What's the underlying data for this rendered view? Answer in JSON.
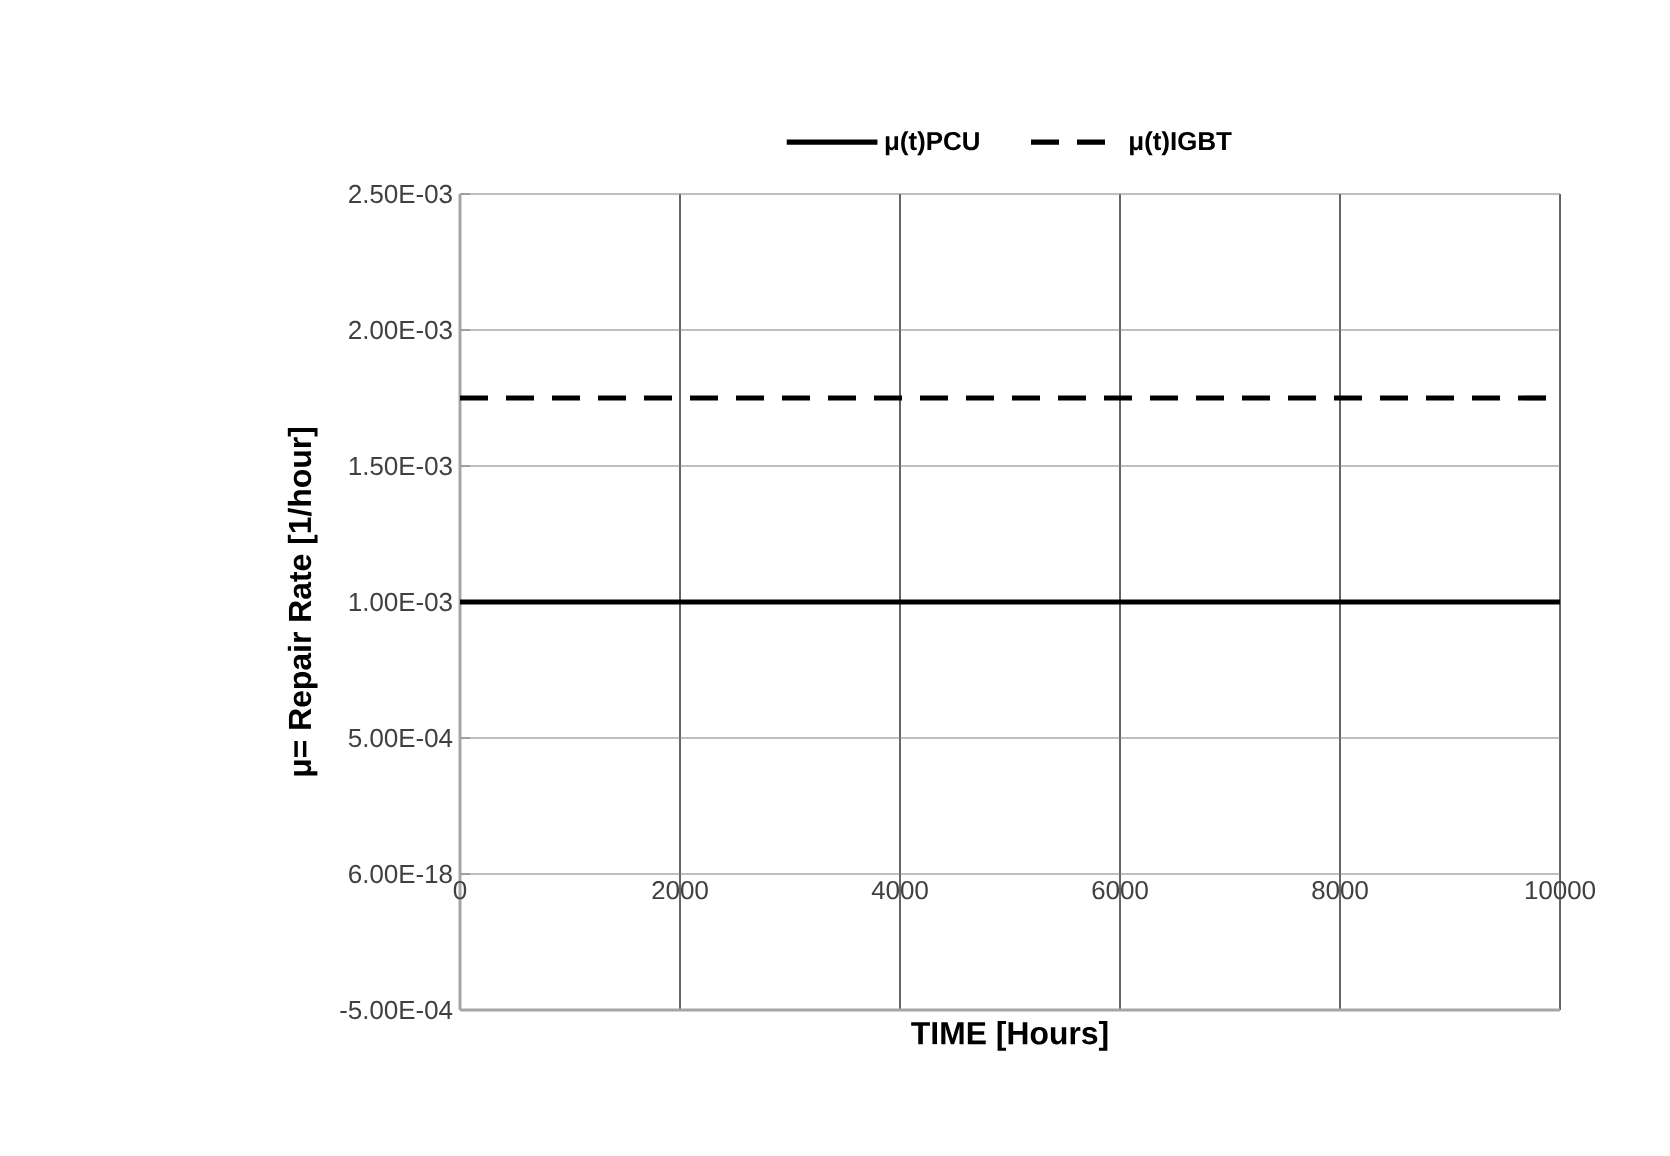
{
  "chart_data": {
    "type": "line",
    "xlabel": "TIME [Hours]",
    "ylabel": "μ= Repair Rate [1/hour]",
    "x": [
      0,
      10000
    ],
    "series": [
      {
        "name": "μ(t)PCU",
        "color": "#000000",
        "values": [
          0.001,
          0.001
        ],
        "line_style": "solid"
      },
      {
        "name": "μ(t)IGBT",
        "color": "#000000",
        "values": [
          0.00175,
          0.00175
        ],
        "line_style": "dashed"
      }
    ],
    "xlim": [
      0,
      10000
    ],
    "xticks": [
      0,
      2000,
      4000,
      6000,
      8000,
      10000
    ],
    "ylim": [
      -0.0005,
      0.0025
    ],
    "yticks": [
      {
        "value": -0.0005,
        "label": "-5.00E-04"
      },
      {
        "value": 0,
        "label": "6.00E-18"
      },
      {
        "value": 0.0005,
        "label": "5.00E-04"
      },
      {
        "value": 0.001,
        "label": "1.00E-03"
      },
      {
        "value": 0.0015,
        "label": "1.50E-03"
      },
      {
        "value": 0.002,
        "label": "2.00E-03"
      },
      {
        "value": 0.0025,
        "label": "2.50E-03"
      }
    ],
    "grid": true,
    "legend": "top",
    "marker": "none"
  }
}
